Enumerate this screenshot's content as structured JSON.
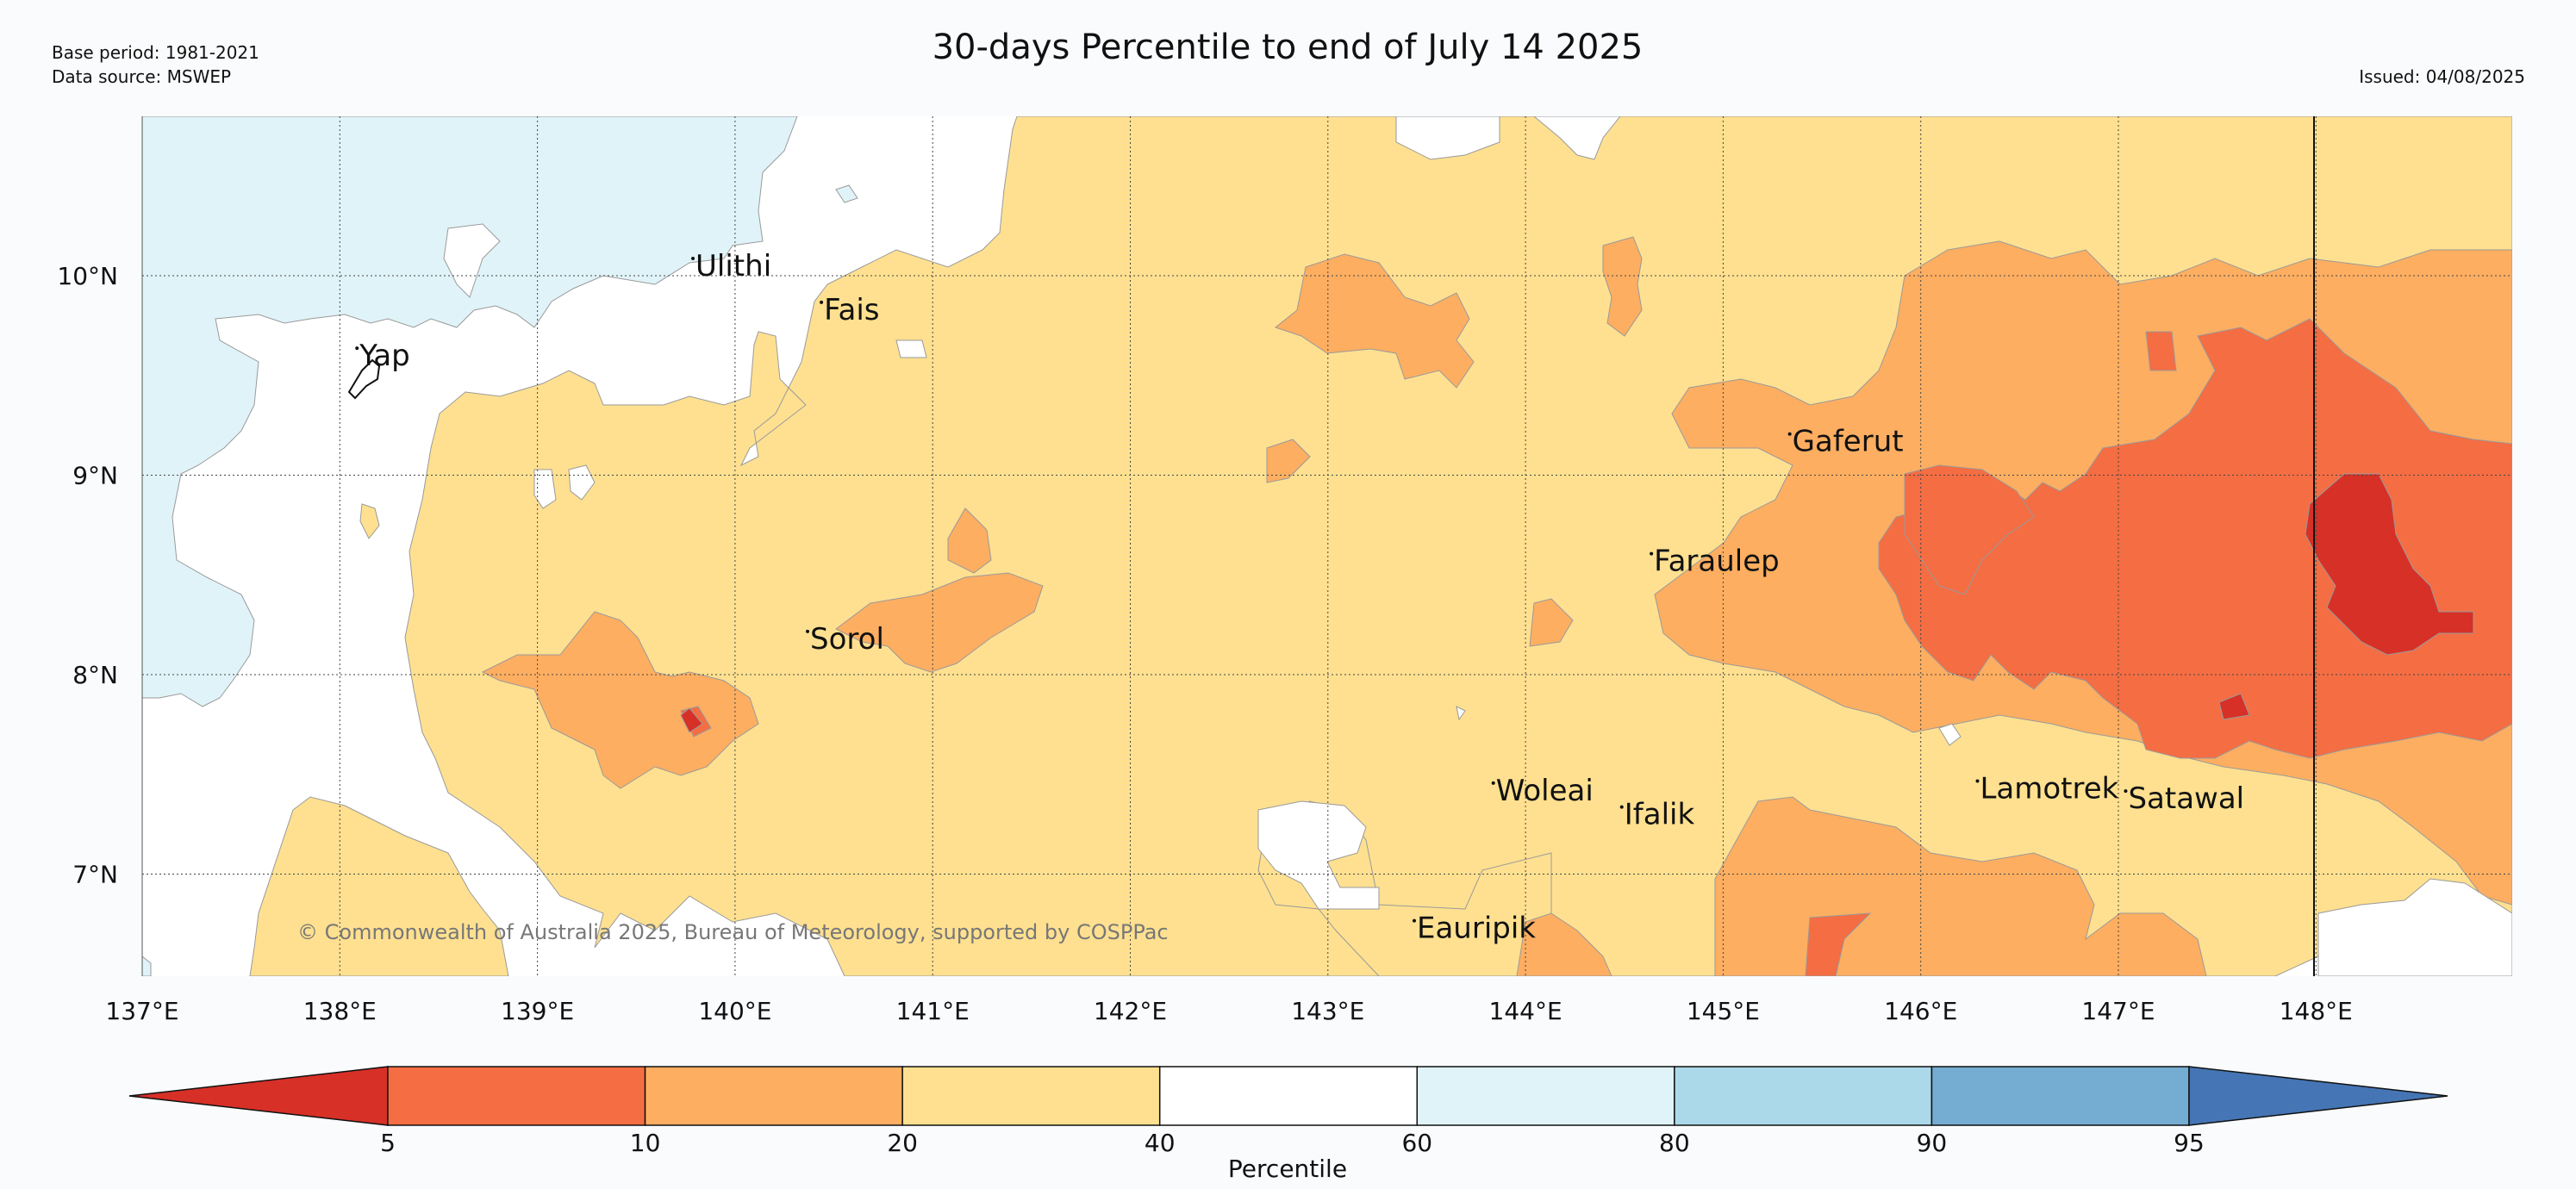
{
  "header": {
    "title": "30-days Percentile to end of July 14 2025",
    "base_period": "Base period: 1981-2021",
    "data_source": "Data source: MSWEP",
    "issued": "Issued: 04/08/2025"
  },
  "map": {
    "lon_range": [
      137,
      149
    ],
    "lat_range": [
      6.5,
      10.8
    ],
    "x_ticks": [
      {
        "value": 137,
        "label": "137°E"
      },
      {
        "value": 138,
        "label": "138°E"
      },
      {
        "value": 139,
        "label": "139°E"
      },
      {
        "value": 140,
        "label": "140°E"
      },
      {
        "value": 141,
        "label": "141°E"
      },
      {
        "value": 142,
        "label": "142°E"
      },
      {
        "value": 143,
        "label": "143°E"
      },
      {
        "value": 144,
        "label": "144°E"
      },
      {
        "value": 145,
        "label": "145°E"
      },
      {
        "value": 146,
        "label": "146°E"
      },
      {
        "value": 147,
        "label": "147°E"
      },
      {
        "value": 148,
        "label": "148°E"
      }
    ],
    "y_ticks": [
      {
        "value": 10,
        "label": "10°N"
      },
      {
        "value": 9,
        "label": "9°N"
      },
      {
        "value": 8,
        "label": "8°N"
      },
      {
        "value": 7,
        "label": "7°N"
      }
    ],
    "places": [
      {
        "name": "Ulithi",
        "lon": 139.8,
        "lat": 10.0
      },
      {
        "name": "Yap",
        "lon": 138.1,
        "lat": 9.55
      },
      {
        "name": "Fais",
        "lon": 140.45,
        "lat": 9.78
      },
      {
        "name": "Gaferut",
        "lon": 145.35,
        "lat": 9.12
      },
      {
        "name": "Faraulep",
        "lon": 144.65,
        "lat": 8.52
      },
      {
        "name": "Sorol",
        "lon": 140.38,
        "lat": 8.13
      },
      {
        "name": "Woleai",
        "lon": 143.85,
        "lat": 7.37
      },
      {
        "name": "Ifalik",
        "lon": 144.5,
        "lat": 7.25
      },
      {
        "name": "Lamotrek",
        "lon": 146.3,
        "lat": 7.38
      },
      {
        "name": "Satawal",
        "lon": 147.05,
        "lat": 7.33
      },
      {
        "name": "Eauripik",
        "lon": 143.45,
        "lat": 6.68
      }
    ],
    "copyright": "© Commonwealth of Australia 2025, Bureau of Meteorology, supported by COSPPac"
  },
  "colorbar": {
    "label": "Percentile",
    "ticks": [
      "5",
      "10",
      "20",
      "40",
      "60",
      "80",
      "90",
      "95"
    ],
    "bins": [
      {
        "range": "<5",
        "color": "#d73027"
      },
      {
        "range": "5-10",
        "color": "#f46d43"
      },
      {
        "range": "10-20",
        "color": "#fdae61"
      },
      {
        "range": "20-40",
        "color": "#fee090"
      },
      {
        "range": "40-60",
        "color": "#ffffff"
      },
      {
        "range": "60-80",
        "color": "#e0f3f8"
      },
      {
        "range": "80-90",
        "color": "#abd9e9"
      },
      {
        "range": "90-95",
        "color": "#74add1"
      },
      {
        "range": ">95",
        "color": "#4575b4"
      }
    ]
  }
}
